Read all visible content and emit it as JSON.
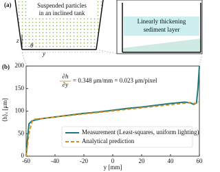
{
  "panel_a": {
    "label": "(a)",
    "left_caption": "Suspended particles",
    "left_caption_2": "in an inclined tank",
    "z": "z",
    "y": "y",
    "theta": "θ",
    "right_caption": "Linearly thickening",
    "right_caption_2": "sediment layer"
  },
  "chart_data": {
    "type": "line",
    "panel_label": "(b)",
    "xlabel": "y [mm]",
    "ylabel": "⟨h⟩ₓ [μm]",
    "annotation": {
      "numerator": "∂h",
      "denominator": "∂y",
      "text": "= 0.348 μm/mm = 0.023 μm/pixel",
      "color": "#b07a10"
    },
    "xlim": [
      -60,
      60
    ],
    "xticks": [
      -60,
      -40,
      -20,
      0,
      20,
      40,
      60
    ],
    "ylim": [
      0,
      200
    ],
    "yticks": [
      0,
      50,
      100,
      150,
      200
    ],
    "series": [
      {
        "name": "Measurement (Least-squares, uniform lighting)",
        "color": "#1d7a78",
        "dash": false,
        "x": [
          -60,
          -59,
          -58,
          -56,
          -54,
          -50,
          -40,
          -30,
          -20,
          -10,
          0,
          10,
          20,
          30,
          40,
          50,
          54,
          56,
          58,
          59,
          60
        ],
        "values": [
          0,
          40,
          72,
          78,
          80,
          83,
          87,
          91,
          95,
          98,
          102,
          106,
          109,
          113,
          117,
          120,
          118,
          115,
          118,
          150,
          200
        ]
      },
      {
        "name": "Analytical prediction",
        "color": "#d98c1a",
        "dash": true,
        "x": [
          -60,
          -58,
          -56,
          -54,
          54,
          56,
          58,
          60
        ],
        "values": [
          0,
          50,
          76,
          82,
          119,
          117,
          118,
          121
        ]
      }
    ]
  }
}
